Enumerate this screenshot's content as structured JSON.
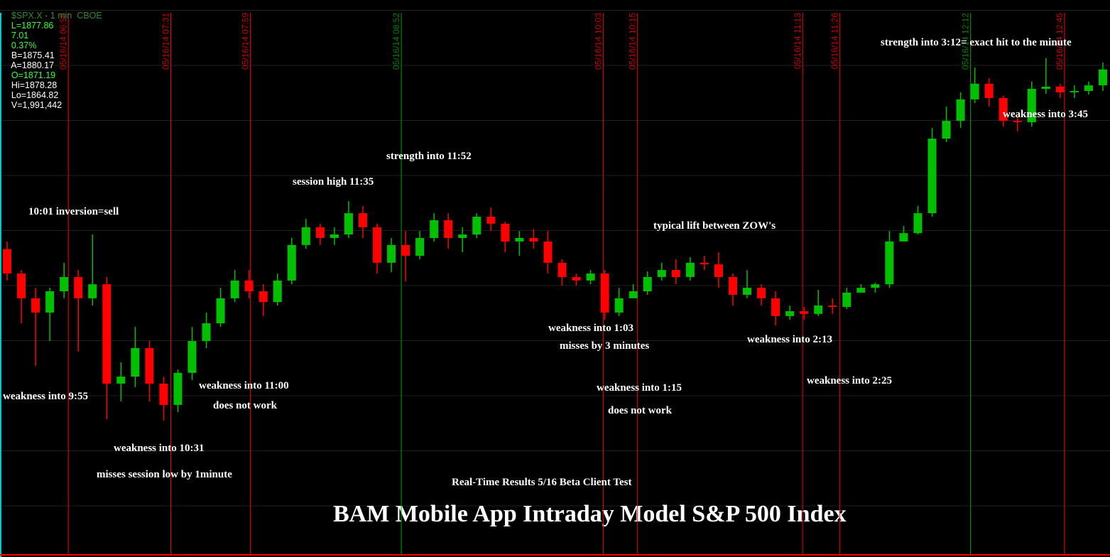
{
  "chart_data": {
    "type": "candlestick",
    "quote": [
      "$SPX.X - 1 min  CBOE",
      "L=1877.86",
      "7.01",
      "0.37%",
      "B=1875.41",
      "A=1880.17",
      "O=1871.19",
      "Hi=1878.28",
      "Lo=1864.82",
      "V=1,991,442"
    ],
    "title": "BAM Mobile App Intraday Model S&P 500 Index",
    "annotations": [
      "10:01 inversion=sell",
      "session high 11:35",
      "strength into 11:52",
      "typical lift between ZOW's",
      "strength into 3:12= exact hit to the minute",
      "weakness into 3:45",
      "weakness into 9:55",
      "weakness into 11:00",
      "does not work",
      "weakness into 10:31",
      "misses session low by 1minute",
      "weakness into 1:03",
      "misses by 3 minutes",
      "weakness into 1:15",
      "does not work",
      "weakness into 2:13",
      "weakness into 2:25",
      "Real-Time Results 5/16 Beta Client Test"
    ],
    "markers": [
      {
        "label": "05/16/14 06:55",
        "color": "#ff0000"
      },
      {
        "label": "05/16/14 07:31",
        "color": "#ff0000"
      },
      {
        "label": "05/16/14 07:59",
        "color": "#ff0000"
      },
      {
        "label": "05/16/14 08:52",
        "color": "#00a000"
      },
      {
        "label": "05/16/14 10:03",
        "color": "#ff0000"
      },
      {
        "label": "05/16/14 10:15",
        "color": "#ff0000"
      },
      {
        "label": "05/16/14 11:13",
        "color": "#ff0000"
      },
      {
        "label": "05/16/14 11:26",
        "color": "#ff0000"
      },
      {
        "label": "05/16/14 12:12",
        "color": "#00a000"
      },
      {
        "label": "05/16/14 12:45",
        "color": "#ff0000"
      }
    ],
    "xlim": [
      "06:31",
      "13:01"
    ],
    "ylim": [
      1859.75,
      1880.44
    ],
    "up_color": "#00c000",
    "down_color": "#ff0000",
    "x": [
      "06:31",
      "06:36",
      "06:41",
      "06:46",
      "06:51",
      "06:56",
      "07:01",
      "07:06",
      "07:11",
      "07:16",
      "07:21",
      "07:26",
      "07:31",
      "07:36",
      "07:41",
      "07:46",
      "07:51",
      "07:56",
      "08:01",
      "08:06",
      "08:11",
      "08:16",
      "08:21",
      "08:26",
      "08:31",
      "08:36",
      "08:41",
      "08:46",
      "08:51",
      "08:56",
      "09:01",
      "09:06",
      "09:11",
      "09:16",
      "09:21",
      "09:26",
      "09:31",
      "09:36",
      "09:41",
      "09:46",
      "09:51",
      "09:56",
      "10:01",
      "10:06",
      "10:11",
      "10:16",
      "10:21",
      "10:26",
      "10:31",
      "10:36",
      "10:41",
      "10:46",
      "10:51",
      "10:56",
      "11:01",
      "11:06",
      "11:11",
      "11:16",
      "11:21",
      "11:26",
      "11:31",
      "11:36",
      "11:41",
      "11:46",
      "11:51",
      "11:56",
      "12:01",
      "12:06",
      "12:11",
      "12:16",
      "12:21",
      "12:26",
      "12:31",
      "12:36",
      "12:41",
      "12:46",
      "12:51",
      "12:56"
    ],
    "open": [
      1871.19,
      1870.28,
      1869.36,
      1868.83,
      1869.62,
      1870.15,
      1869.36,
      1869.88,
      1866.19,
      1866.45,
      1867.51,
      1866.19,
      1865.4,
      1866.59,
      1867.77,
      1868.43,
      1869.36,
      1870.02,
      1869.62,
      1869.22,
      1870.02,
      1871.34,
      1872.0,
      1871.6,
      1871.73,
      1872.52,
      1872.0,
      1870.68,
      1871.34,
      1870.94,
      1871.6,
      1872.26,
      1871.6,
      1871.73,
      1872.39,
      1872.13,
      1871.47,
      1871.6,
      1871.47,
      1870.68,
      1870.15,
      1870.02,
      1870.28,
      1868.83,
      1869.36,
      1869.62,
      1870.15,
      1870.41,
      1870.15,
      1870.68,
      1870.62,
      1870.15,
      1869.49,
      1869.75,
      1869.36,
      1868.7,
      1868.88,
      1868.78,
      1869.09,
      1869.04,
      1869.57,
      1869.75,
      1869.88,
      1871.47,
      1871.78,
      1872.52,
      1875.29,
      1875.95,
      1876.75,
      1877.33,
      1876.8,
      1875.95,
      1875.9,
      1877.14,
      1877.22,
      1877.01,
      1877.06,
      1877.27
    ],
    "high": [
      1871.47,
      1870.41,
      1869.75,
      1869.75,
      1870.68,
      1870.41,
      1871.73,
      1870.15,
      1866.98,
      1868.3,
      1867.77,
      1866.45,
      1866.72,
      1868.3,
      1868.83,
      1869.75,
      1870.41,
      1870.41,
      1869.88,
      1870.28,
      1871.6,
      1872.31,
      1872.13,
      1872.0,
      1872.97,
      1872.79,
      1872.13,
      1871.6,
      1871.86,
      1871.86,
      1872.52,
      1872.52,
      1872.0,
      1872.52,
      1872.73,
      1872.21,
      1871.86,
      1871.94,
      1871.86,
      1870.81,
      1870.28,
      1870.41,
      1870.41,
      1869.75,
      1869.88,
      1870.36,
      1870.68,
      1870.81,
      1870.89,
      1870.94,
      1871.07,
      1870.28,
      1870.41,
      1869.88,
      1869.62,
      1869.09,
      1869.04,
      1869.67,
      1869.36,
      1869.75,
      1869.88,
      1869.94,
      1871.86,
      1872.05,
      1872.79,
      1875.69,
      1876.48,
      1877.01,
      1877.93,
      1877.54,
      1876.88,
      1876.09,
      1877.41,
      1878.28,
      1877.33,
      1877.27,
      1877.41,
      1878.12
    ],
    "low": [
      1870.02,
      1868.43,
      1866.85,
      1867.77,
      1869.36,
      1867.38,
      1869.09,
      1864.87,
      1865.53,
      1866.06,
      1865.53,
      1864.82,
      1865.13,
      1866.32,
      1867.51,
      1868.3,
      1869.22,
      1869.36,
      1868.7,
      1869.09,
      1869.88,
      1871.2,
      1871.34,
      1871.34,
      1871.6,
      1871.6,
      1870.28,
      1870.33,
      1869.99,
      1870.81,
      1871.47,
      1871.2,
      1871.07,
      1871.6,
      1871.86,
      1871.07,
      1870.94,
      1871.2,
      1870.28,
      1869.83,
      1869.83,
      1869.88,
      1868.56,
      1868.7,
      1869.36,
      1869.49,
      1870.02,
      1869.88,
      1870.02,
      1870.41,
      1869.75,
      1869.09,
      1869.36,
      1869.09,
      1868.35,
      1868.56,
      1868.56,
      1868.7,
      1868.78,
      1868.96,
      1869.57,
      1869.57,
      1869.75,
      1871.47,
      1871.73,
      1872.39,
      1875.16,
      1875.69,
      1876.61,
      1876.48,
      1875.74,
      1875.56,
      1875.74,
      1876.96,
      1876.8,
      1876.8,
      1876.93,
      1877.06
    ],
    "close": [
      1870.28,
      1869.36,
      1868.83,
      1869.62,
      1870.15,
      1869.36,
      1869.88,
      1866.19,
      1866.45,
      1867.51,
      1866.19,
      1865.4,
      1866.59,
      1867.77,
      1868.43,
      1869.36,
      1870.02,
      1869.62,
      1869.22,
      1870.02,
      1871.34,
      1872.0,
      1871.6,
      1871.73,
      1872.52,
      1872.0,
      1870.68,
      1871.34,
      1870.94,
      1871.6,
      1872.26,
      1871.6,
      1871.73,
      1872.39,
      1872.13,
      1871.47,
      1871.6,
      1871.47,
      1870.68,
      1870.15,
      1870.02,
      1870.28,
      1868.83,
      1869.36,
      1869.62,
      1870.15,
      1870.41,
      1870.15,
      1870.68,
      1870.62,
      1870.15,
      1869.49,
      1869.75,
      1869.36,
      1868.7,
      1868.88,
      1868.78,
      1869.09,
      1869.04,
      1869.57,
      1869.75,
      1869.88,
      1871.47,
      1871.78,
      1872.52,
      1875.29,
      1875.95,
      1876.75,
      1877.33,
      1876.8,
      1875.95,
      1875.9,
      1877.14,
      1877.22,
      1877.01,
      1877.06,
      1877.27,
      1877.86
    ]
  }
}
